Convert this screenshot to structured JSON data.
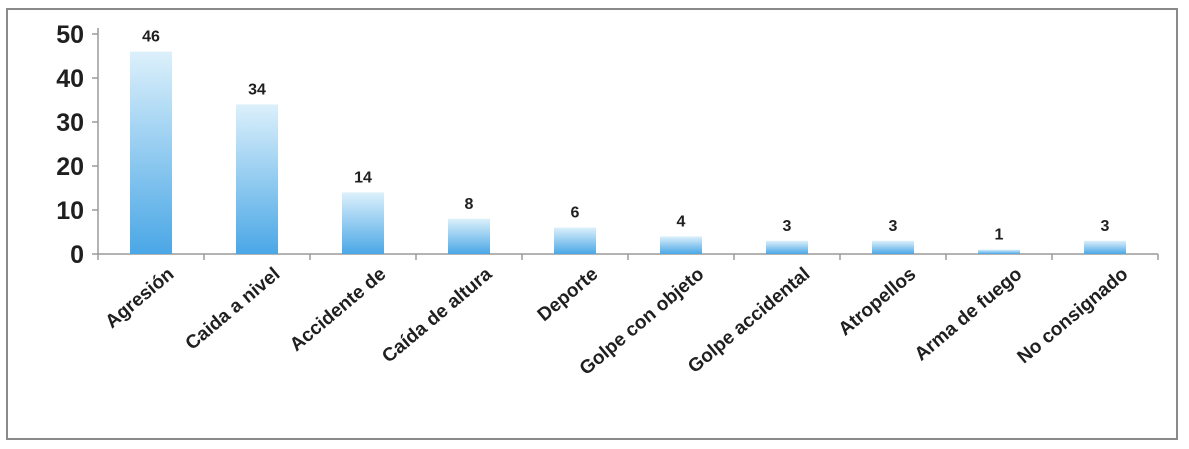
{
  "chart_data": {
    "type": "bar",
    "categories": [
      "Agresión",
      "Caida a nivel",
      "Accidente de",
      "Caída de altura",
      "Deporte",
      "Golpe con objeto",
      "Golpe accidental",
      "Atropellos",
      "Arma de fuego",
      "No consignado"
    ],
    "values": [
      46,
      34,
      14,
      8,
      6,
      4,
      3,
      3,
      1,
      3
    ],
    "ylim": [
      0,
      50
    ],
    "yticks": [
      0,
      10,
      20,
      30,
      40,
      50
    ],
    "grid": false,
    "legend": "none",
    "colors": {
      "bar_top": "#dcf0fb",
      "bar_bottom": "#4aa7e6",
      "axis": "#9a9a9a",
      "text": "#1f1f1f"
    }
  }
}
